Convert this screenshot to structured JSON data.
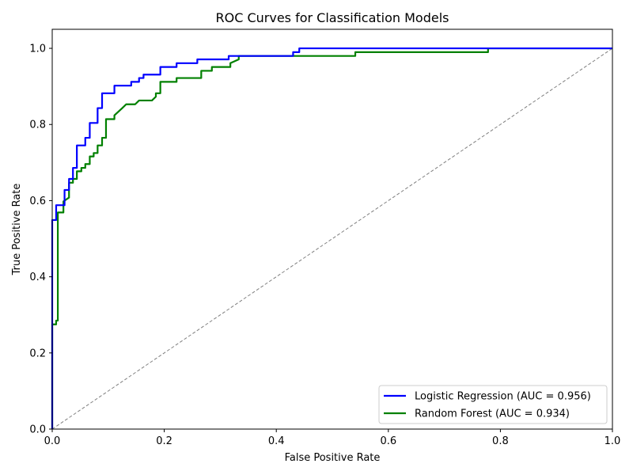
{
  "chart_data": {
    "type": "line",
    "title": "ROC Curves for Classification Models",
    "xlabel": "False Positive Rate",
    "ylabel": "True Positive Rate",
    "xlim": [
      0.0,
      1.0
    ],
    "ylim": [
      0.0,
      1.05
    ],
    "xticks": [
      0.0,
      0.2,
      0.4,
      0.6,
      0.8,
      1.0
    ],
    "yticks": [
      0.0,
      0.2,
      0.4,
      0.6,
      0.8,
      1.0
    ],
    "xtick_labels": [
      "0.0",
      "0.2",
      "0.4",
      "0.6",
      "0.8",
      "1.0"
    ],
    "ytick_labels": [
      "0.0",
      "0.2",
      "0.4",
      "0.6",
      "0.8",
      "1.0"
    ],
    "grid": false,
    "legend_position": "lower-right",
    "series": [
      {
        "name": "Logistic Regression (AUC = 0.956)",
        "color": "#0000ff",
        "style": "solid",
        "x": [
          0.0,
          0.0,
          0.0,
          0.0,
          0.007,
          0.007,
          0.022,
          0.022,
          0.022,
          0.03,
          0.03,
          0.037,
          0.037,
          0.044,
          0.044,
          0.052,
          0.052,
          0.059,
          0.059,
          0.067,
          0.067,
          0.074,
          0.074,
          0.081,
          0.081,
          0.089,
          0.089,
          0.096,
          0.096,
          0.111,
          0.111,
          0.141,
          0.141,
          0.155,
          0.155,
          0.163,
          0.163,
          0.193,
          0.193,
          0.222,
          0.222,
          0.259,
          0.259,
          0.315,
          0.315,
          0.43,
          0.43,
          0.437,
          0.437,
          0.441,
          0.441,
          0.5,
          0.55,
          0.6,
          0.65,
          0.7,
          0.75,
          0.8,
          0.85,
          0.9,
          0.95,
          1.0
        ],
        "y": [
          0.0,
          0.18,
          0.41,
          0.549,
          0.549,
          0.588,
          0.588,
          0.588,
          0.628,
          0.628,
          0.657,
          0.657,
          0.686,
          0.686,
          0.745,
          0.745,
          0.745,
          0.745,
          0.765,
          0.765,
          0.804,
          0.804,
          0.804,
          0.804,
          0.843,
          0.843,
          0.882,
          0.882,
          0.882,
          0.882,
          0.902,
          0.902,
          0.912,
          0.912,
          0.922,
          0.922,
          0.931,
          0.931,
          0.951,
          0.951,
          0.961,
          0.961,
          0.971,
          0.971,
          0.98,
          0.98,
          0.99,
          0.99,
          0.99,
          0.99,
          1.0,
          1.0,
          1.0,
          1.0,
          1.0,
          1.0,
          1.0,
          1.0,
          1.0,
          1.0,
          1.0,
          1.0
        ]
      },
      {
        "name": "Random Forest (AUC = 0.934)",
        "color": "#008000",
        "style": "solid",
        "x": [
          0.0,
          0.0,
          0.007,
          0.007,
          0.01,
          0.01,
          0.02,
          0.02,
          0.03,
          0.03,
          0.037,
          0.037,
          0.044,
          0.044,
          0.052,
          0.052,
          0.059,
          0.059,
          0.067,
          0.067,
          0.074,
          0.074,
          0.081,
          0.081,
          0.089,
          0.089,
          0.096,
          0.096,
          0.103,
          0.103,
          0.111,
          0.111,
          0.125,
          0.132,
          0.14,
          0.148,
          0.155,
          0.163,
          0.17,
          0.178,
          0.185,
          0.185,
          0.193,
          0.193,
          0.222,
          0.222,
          0.266,
          0.266,
          0.285,
          0.285,
          0.318,
          0.318,
          0.333,
          0.333,
          0.34,
          0.34,
          0.541,
          0.541,
          0.778,
          0.778,
          1.0
        ],
        "y": [
          0.0,
          0.275,
          0.275,
          0.285,
          0.285,
          0.569,
          0.569,
          0.598,
          0.608,
          0.647,
          0.647,
          0.657,
          0.657,
          0.677,
          0.677,
          0.686,
          0.686,
          0.696,
          0.696,
          0.716,
          0.716,
          0.725,
          0.725,
          0.745,
          0.745,
          0.765,
          0.765,
          0.814,
          0.814,
          0.814,
          0.814,
          0.824,
          0.843,
          0.853,
          0.853,
          0.853,
          0.863,
          0.863,
          0.863,
          0.863,
          0.873,
          0.882,
          0.882,
          0.912,
          0.912,
          0.922,
          0.922,
          0.941,
          0.941,
          0.951,
          0.951,
          0.961,
          0.971,
          0.98,
          0.98,
          0.98,
          0.98,
          0.99,
          0.99,
          1.0,
          1.0
        ]
      },
      {
        "name": "",
        "color": "#808080",
        "style": "dashed",
        "x": [
          0.0,
          1.0
        ],
        "y": [
          0.0,
          1.0
        ]
      }
    ]
  }
}
